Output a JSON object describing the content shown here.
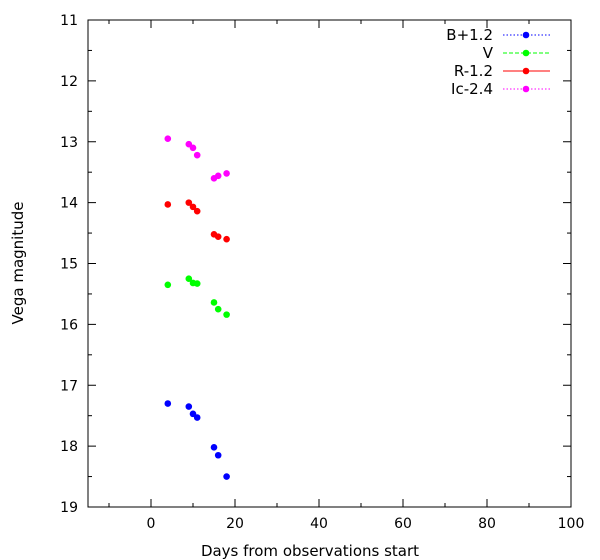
{
  "chart_data": {
    "type": "scatter",
    "xlabel": "Days from observations start",
    "ylabel": "Vega magnitude",
    "xlim": [
      -15,
      100
    ],
    "ylim": [
      11,
      19
    ],
    "y_inverted": true,
    "xticks": [
      0,
      20,
      40,
      60,
      80,
      100
    ],
    "yticks": [
      11,
      12,
      13,
      14,
      15,
      16,
      17,
      18,
      19
    ],
    "grid": false,
    "legend_position": "top-right",
    "series": [
      {
        "name": "B+1.2",
        "color": "#0000ff",
        "line_style": "dotted",
        "points": [
          [
            4,
            17.3
          ],
          [
            9,
            17.35
          ],
          [
            10,
            17.47
          ],
          [
            11,
            17.53
          ],
          [
            15,
            18.02
          ],
          [
            16,
            18.15
          ],
          [
            18,
            18.5
          ]
        ]
      },
      {
        "name": "V",
        "color": "#00ff00",
        "line_style": "dashed",
        "points": [
          [
            4,
            15.35
          ],
          [
            9,
            15.25
          ],
          [
            10,
            15.32
          ],
          [
            11,
            15.33
          ],
          [
            15,
            15.64
          ],
          [
            16,
            15.75
          ],
          [
            18,
            15.84
          ]
        ]
      },
      {
        "name": "R-1.2",
        "color": "#ff0000",
        "line_style": "solid",
        "points": [
          [
            4,
            14.03
          ],
          [
            9,
            14.0
          ],
          [
            10,
            14.07
          ],
          [
            11,
            14.14
          ],
          [
            15,
            14.52
          ],
          [
            16,
            14.56
          ],
          [
            18,
            14.6
          ]
        ]
      },
      {
        "name": "Ic-2.4",
        "color": "#ff00ff",
        "line_style": "dotted",
        "points": [
          [
            4,
            12.95
          ],
          [
            9,
            13.04
          ],
          [
            10,
            13.1
          ],
          [
            11,
            13.22
          ],
          [
            15,
            13.6
          ],
          [
            16,
            13.56
          ],
          [
            18,
            13.52
          ]
        ]
      }
    ]
  }
}
